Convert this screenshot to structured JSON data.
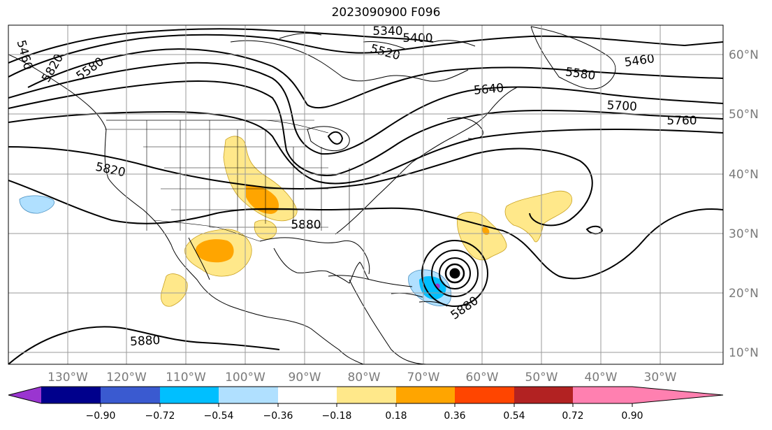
{
  "title": "2023090900 F096",
  "lon_labels": [
    "130°W",
    "120°W",
    "110°W",
    "100°W",
    "90°W",
    "80°W",
    "70°W",
    "60°W",
    "50°W",
    "40°W",
    "30°W"
  ],
  "lat_labels": [
    "60°N",
    "50°N",
    "40°N",
    "30°N",
    "20°N",
    "10°N"
  ],
  "contour_labels": [
    "5340",
    "5400",
    "5460",
    "5460",
    "5520",
    "5580",
    "5580",
    "5640",
    "5700",
    "5760",
    "5820",
    "5820",
    "5880",
    "5880",
    "5880"
  ],
  "colorbar": {
    "ticks": [
      "−0.90",
      "−0.72",
      "−0.54",
      "−0.36",
      "−0.18",
      "0.18",
      "0.36",
      "0.54",
      "0.72",
      "0.90"
    ],
    "colors": [
      "#9a35d0",
      "#00008c",
      "#3a5ad0",
      "#00bfff",
      "#b0e0ff",
      "#ffffff",
      "#ffe88a",
      "#ffa500",
      "#ff4500",
      "#b22222",
      "#ff80b0"
    ]
  },
  "fill_colors": {
    "light_yellow": "#ffe88a",
    "orange": "#ffa500",
    "light_blue": "#b0e0ff",
    "cyan": "#00bfff",
    "violet": "#9a35d0"
  }
}
